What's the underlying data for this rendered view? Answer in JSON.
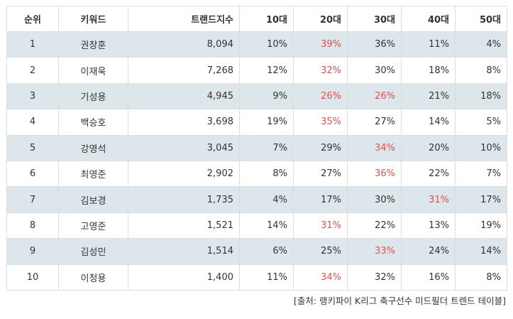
{
  "table": {
    "columns": [
      "순위",
      "키워드",
      "트랜드지수",
      "10대",
      "20대",
      "30대",
      "40대",
      "50대"
    ],
    "rows": [
      {
        "rank": "1",
        "keyword": "권창훈",
        "index": "8,094",
        "a10": "10%",
        "a20": "39%",
        "a30": "36%",
        "a40": "11%",
        "a50": "4%",
        "highlight": [
          "a20"
        ]
      },
      {
        "rank": "2",
        "keyword": "이재욱",
        "index": "7,268",
        "a10": "12%",
        "a20": "32%",
        "a30": "30%",
        "a40": "18%",
        "a50": "8%",
        "highlight": [
          "a20"
        ]
      },
      {
        "rank": "3",
        "keyword": "기성용",
        "index": "4,945",
        "a10": "9%",
        "a20": "26%",
        "a30": "26%",
        "a40": "21%",
        "a50": "18%",
        "highlight": [
          "a20",
          "a30"
        ]
      },
      {
        "rank": "4",
        "keyword": "백승호",
        "index": "3,698",
        "a10": "19%",
        "a20": "35%",
        "a30": "27%",
        "a40": "14%",
        "a50": "5%",
        "highlight": [
          "a20"
        ]
      },
      {
        "rank": "5",
        "keyword": "강영석",
        "index": "3,045",
        "a10": "7%",
        "a20": "29%",
        "a30": "34%",
        "a40": "20%",
        "a50": "10%",
        "highlight": [
          "a30"
        ]
      },
      {
        "rank": "6",
        "keyword": "최영준",
        "index": "2,902",
        "a10": "8%",
        "a20": "27%",
        "a30": "36%",
        "a40": "22%",
        "a50": "7%",
        "highlight": [
          "a30"
        ]
      },
      {
        "rank": "7",
        "keyword": "김보경",
        "index": "1,735",
        "a10": "4%",
        "a20": "17%",
        "a30": "30%",
        "a40": "31%",
        "a50": "17%",
        "highlight": [
          "a40"
        ]
      },
      {
        "rank": "8",
        "keyword": "고영준",
        "index": "1,521",
        "a10": "14%",
        "a20": "31%",
        "a30": "22%",
        "a40": "13%",
        "a50": "19%",
        "highlight": [
          "a20"
        ]
      },
      {
        "rank": "9",
        "keyword": "김성민",
        "index": "1,514",
        "a10": "6%",
        "a20": "25%",
        "a30": "33%",
        "a40": "24%",
        "a50": "14%",
        "highlight": [
          "a30"
        ]
      },
      {
        "rank": "10",
        "keyword": "이청용",
        "index": "1,400",
        "a10": "11%",
        "a20": "34%",
        "a30": "32%",
        "a40": "16%",
        "a50": "8%",
        "highlight": [
          "a20"
        ]
      }
    ]
  },
  "source": "[출처: 랭키파이 K리그 축구선수 미드필더 트렌드 테이블]",
  "colors": {
    "stripe": "#dde6ea",
    "highlight": "#d9534f",
    "border": "#dddddd",
    "text": "#333333"
  }
}
